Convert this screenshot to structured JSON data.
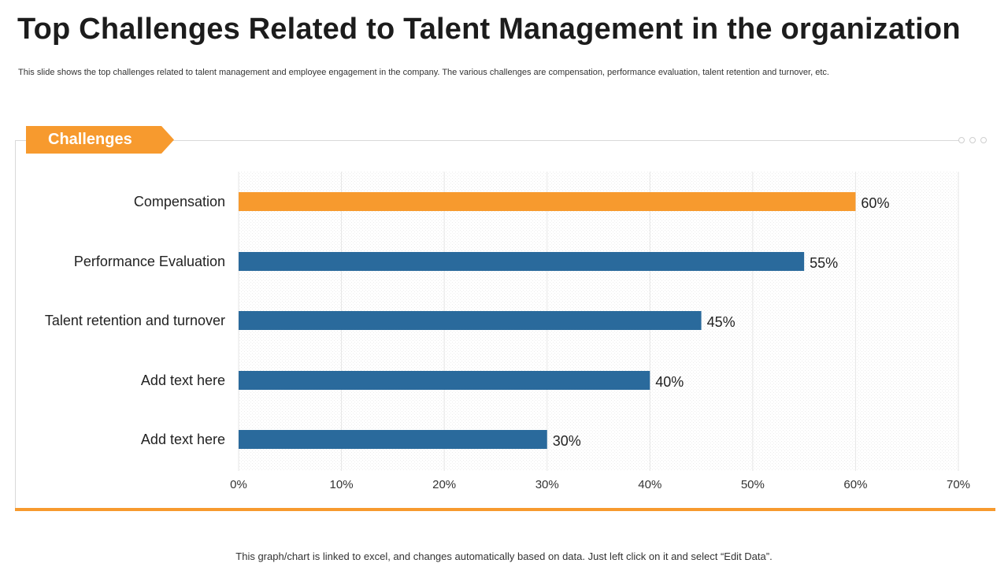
{
  "title": "Top Challenges Related to Talent Management in the organization",
  "subtitle": "This slide shows the top challenges related to talent management and employee engagement in the company. The various challenges are compensation, performance evaluation, talent retention and turnover, etc.",
  "panel": {
    "tag_label": "Challenges"
  },
  "footer_note": "This graph/chart is linked to excel,  and changes automatically based on data. Just left click on it and select “Edit Data”.",
  "colors": {
    "accent": "#f79a2e",
    "bar": "#2a6a9c",
    "highlight_bar": "#f79a2e"
  },
  "chart_data": {
    "type": "bar",
    "orientation": "horizontal",
    "categories": [
      "Compensation",
      "Performance Evaluation",
      "Talent retention and turnover",
      "Add text here",
      "Add text here"
    ],
    "values": [
      60,
      55,
      45,
      40,
      30
    ],
    "value_labels": [
      "60%",
      "55%",
      "45%",
      "40%",
      "30%"
    ],
    "highlight_index": 0,
    "xlim": [
      0,
      70
    ],
    "xticks": [
      0,
      10,
      20,
      30,
      40,
      50,
      60,
      70
    ],
    "xtick_labels": [
      "0%",
      "10%",
      "20%",
      "30%",
      "40%",
      "50%",
      "60%",
      "70%"
    ],
    "title": "",
    "xlabel": "",
    "ylabel": "",
    "grid": true
  }
}
